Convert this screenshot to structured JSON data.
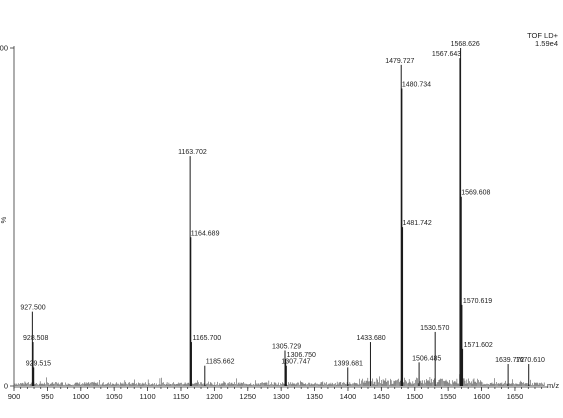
{
  "chart_data": {
    "type": "mass-spectrum",
    "instrument_label": "TOF LD+",
    "intensity_label": "1.59e4",
    "xlabel": "m/z",
    "ylabel": "%",
    "xlim": [
      900,
      1695
    ],
    "ylim": [
      0,
      100
    ],
    "x_ticks": [
      "900",
      "950",
      "1000",
      "1050",
      "1100",
      "1150",
      "1200",
      "1250",
      "1300",
      "1350",
      "1400",
      "1450",
      "1500",
      "1550",
      "1600",
      "1650"
    ],
    "y_ticks": [
      "0",
      "100"
    ],
    "peaks": [
      {
        "x": 927.5,
        "y": 22,
        "label": "927.500"
      },
      {
        "x": 928.508,
        "y": 13,
        "label": "928.508"
      },
      {
        "x": 929.515,
        "y": 5.5,
        "label": "929.515"
      },
      {
        "x": 1163.702,
        "y": 68,
        "label": "1163.702"
      },
      {
        "x": 1164.689,
        "y": 44,
        "label": "1164.689"
      },
      {
        "x": 1165.7,
        "y": 13,
        "label": "1165.700"
      },
      {
        "x": 1185.662,
        "y": 6,
        "label": "1185.662"
      },
      {
        "x": 1305.729,
        "y": 10.5,
        "label": "1305.729"
      },
      {
        "x": 1306.75,
        "y": 8,
        "label": "1306.750"
      },
      {
        "x": 1307.747,
        "y": 6,
        "label": "1307.747"
      },
      {
        "x": 1399.681,
        "y": 5.5,
        "label": "1399.681"
      },
      {
        "x": 1433.68,
        "y": 13,
        "label": "1433.680"
      },
      {
        "x": 1479.727,
        "y": 95,
        "label": "1479.727"
      },
      {
        "x": 1480.734,
        "y": 88,
        "label": "1480.734"
      },
      {
        "x": 1481.742,
        "y": 47,
        "label": "1481.742"
      },
      {
        "x": 1506.485,
        "y": 7,
        "label": "1506.485"
      },
      {
        "x": 1530.57,
        "y": 16,
        "label": "1530.570"
      },
      {
        "x": 1567.643,
        "y": 97,
        "label": "1567.643"
      },
      {
        "x": 1568.626,
        "y": 100,
        "label": "1568.626"
      },
      {
        "x": 1569.608,
        "y": 56,
        "label": "1569.608"
      },
      {
        "x": 1570.619,
        "y": 24,
        "label": "1570.619"
      },
      {
        "x": 1571.602,
        "y": 11,
        "label": "1571.602"
      },
      {
        "x": 1639.772,
        "y": 6.5,
        "label": "1639.772"
      },
      {
        "x": 1670.61,
        "y": 6.5,
        "label": "1670.610"
      }
    ]
  }
}
